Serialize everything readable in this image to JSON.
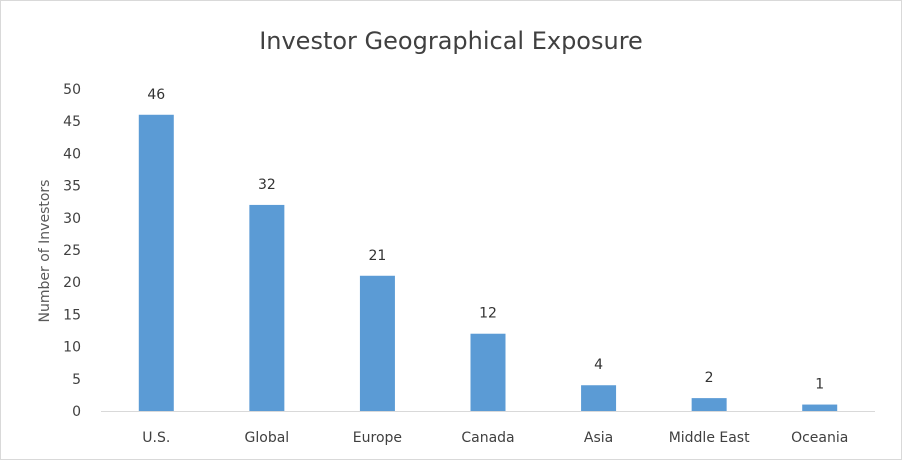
{
  "chart_data": {
    "type": "bar",
    "title": "Investor Geographical Exposure",
    "xlabel": "",
    "ylabel": "Number of Investors",
    "categories": [
      "U.S.",
      "Global",
      "Europe",
      "Canada",
      "Asia",
      "Middle East",
      "Oceania"
    ],
    "values": [
      46,
      32,
      21,
      12,
      4,
      2,
      1
    ],
    "ylim": [
      0,
      50
    ],
    "yticks": [
      "0",
      "5",
      "10",
      "15",
      "20",
      "25",
      "30",
      "35",
      "40",
      "45",
      "50"
    ],
    "grid": false,
    "legend": "none",
    "bar_color": "#5b9bd5",
    "axis_color": "#d9d9d9"
  }
}
